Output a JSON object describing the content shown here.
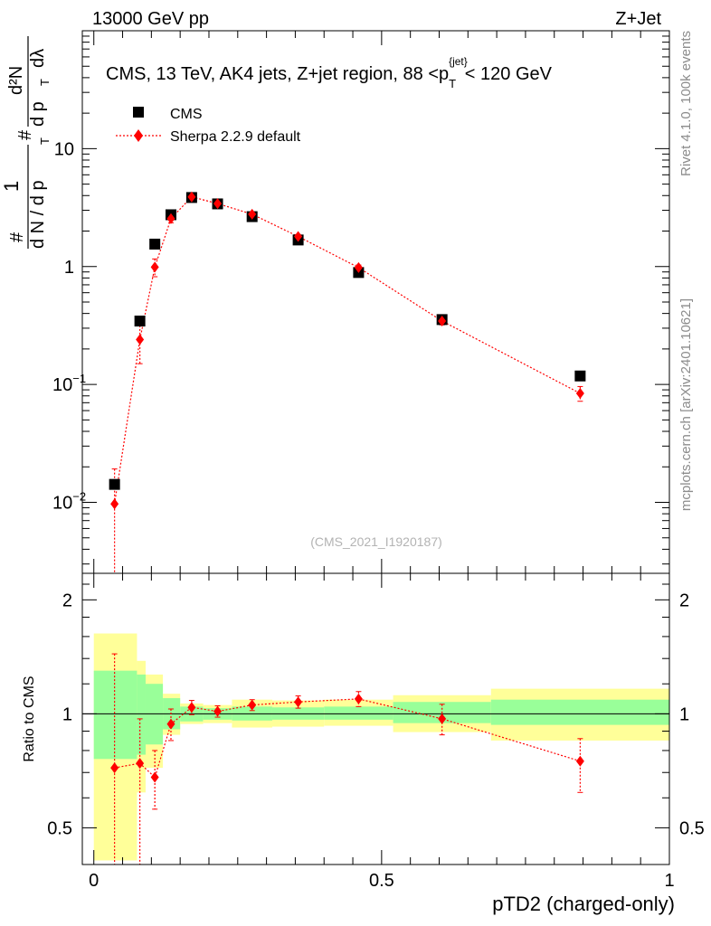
{
  "header": {
    "left": "13000 GeV pp",
    "right": "Z+Jet"
  },
  "side": {
    "rivet": "Rivet 4.1.0,  100k events",
    "mcplots": "mcplots.cern.ch [arXiv:2401.10621]"
  },
  "colors": {
    "data": "#000000",
    "mc": "#ff0000",
    "band_inner": "#99ff99",
    "band_outer": "#ffff99",
    "label_gray": "#8c8c8c"
  },
  "chart_data": [
    {
      "id": "main",
      "type": "scatter",
      "title": "CMS, 13 TeV, AK4 jets, Z+jet region, 88 <p_T^{jet}< 120 GeV",
      "title_prefix": "CMS, 13 TeV, AK4 jets, Z+jet region, 88 <",
      "title_p": "p",
      "title_sub": "T",
      "title_sup": "{jet}",
      "title_suffix": "< 120 GeV",
      "ylabel": "1/N dN/dp_T d^2N/dp_T dλ",
      "ylabel_parts": {
        "one": "1",
        "hash": "#",
        "dN": "d N / d p",
        "T": "T",
        "d2N": "d²N",
        "dpdl": "d p",
        "dl": "dλ"
      },
      "watermark": "(CMS_2021_I1920187)",
      "yscale": "log",
      "ylim": [
        0.0025,
        100
      ],
      "xlim": [
        -0.02,
        1.0
      ],
      "yticks": [
        {
          "v": 0.01,
          "base": "10",
          "exp": "−2"
        },
        {
          "v": 0.1,
          "base": "10",
          "exp": "−1"
        },
        {
          "v": 1,
          "base": "1",
          "exp": ""
        },
        {
          "v": 10,
          "base": "10",
          "exp": ""
        }
      ],
      "legend": [
        {
          "name": "CMS",
          "marker": "square"
        },
        {
          "name": "Sherpa 2.2.9 default",
          "marker": "diamond"
        }
      ],
      "series": [
        {
          "name": "CMS",
          "x": [
            0.036,
            0.08,
            0.106,
            0.134,
            0.17,
            0.215,
            0.275,
            0.355,
            0.46,
            0.605,
            0.845
          ],
          "values": [
            0.0142,
            0.345,
            1.55,
            2.75,
            3.85,
            3.4,
            2.65,
            1.68,
            0.89,
            0.355,
            0.118
          ]
        },
        {
          "name": "Sherpa 2.2.9 default",
          "x": [
            0.036,
            0.08,
            0.106,
            0.134,
            0.17,
            0.215,
            0.275,
            0.355,
            0.46,
            0.605,
            0.845
          ],
          "values": [
            0.0097,
            0.24,
            0.99,
            2.55,
            3.9,
            3.42,
            2.78,
            1.8,
            0.98,
            0.345,
            0.084
          ],
          "err_low": [
            0.0073,
            0.09,
            0.17,
            0.2,
            0.15,
            0.1,
            0.08,
            0.07,
            0.05,
            0.025,
            0.012
          ],
          "err_high": [
            0.0095,
            0.1,
            0.17,
            0.2,
            0.15,
            0.1,
            0.08,
            0.07,
            0.05,
            0.025,
            0.012
          ]
        }
      ]
    },
    {
      "id": "ratio",
      "type": "line",
      "xlabel": "pTD2 (charged-only)",
      "ylabel": "Ratio to CMS",
      "yscale": "log",
      "ylim": [
        0.4,
        2.35
      ],
      "xlim": [
        -0.02,
        1.0
      ],
      "yticks": [
        {
          "v": 0.5,
          "label": "0.5"
        },
        {
          "v": 1,
          "label": "1"
        },
        {
          "v": 2,
          "label": "2"
        }
      ],
      "xticks": [
        {
          "v": 0,
          "label": "0"
        },
        {
          "v": 0.5,
          "label": "0.5"
        },
        {
          "v": 1,
          "label": "1"
        }
      ],
      "bins": [
        0.0,
        0.075,
        0.09,
        0.12,
        0.15,
        0.19,
        0.24,
        0.31,
        0.4,
        0.52,
        0.69,
        1.0
      ],
      "band_inner": {
        "low": [
          0.76,
          0.78,
          0.83,
          0.91,
          0.955,
          0.965,
          0.96,
          0.965,
          0.965,
          0.945,
          0.935
        ],
        "high": [
          1.3,
          1.27,
          1.2,
          1.1,
          1.045,
          1.035,
          1.045,
          1.04,
          1.045,
          1.075,
          1.09
        ]
      },
      "band_outer": {
        "low": [
          0.41,
          0.62,
          0.72,
          0.88,
          0.94,
          0.945,
          0.92,
          0.925,
          0.93,
          0.895,
          0.85
        ],
        "high": [
          1.63,
          1.38,
          1.27,
          1.13,
          1.065,
          1.055,
          1.09,
          1.085,
          1.09,
          1.12,
          1.165
        ]
      },
      "series": [
        {
          "name": "Sherpa 2.2.9 default",
          "x": [
            0.036,
            0.08,
            0.106,
            0.134,
            0.17,
            0.215,
            0.275,
            0.355,
            0.46,
            0.605,
            0.845
          ],
          "values": [
            0.72,
            0.74,
            0.68,
            0.94,
            1.04,
            1.015,
            1.055,
            1.075,
            1.095,
            0.97,
            0.75
          ],
          "err_low": [
            0.32,
            0.35,
            0.12,
            0.09,
            0.045,
            0.035,
            0.035,
            0.04,
            0.05,
            0.09,
            0.13
          ],
          "err_high": [
            0.72,
            0.23,
            0.12,
            0.09,
            0.045,
            0.035,
            0.035,
            0.04,
            0.05,
            0.09,
            0.11
          ]
        }
      ]
    }
  ]
}
